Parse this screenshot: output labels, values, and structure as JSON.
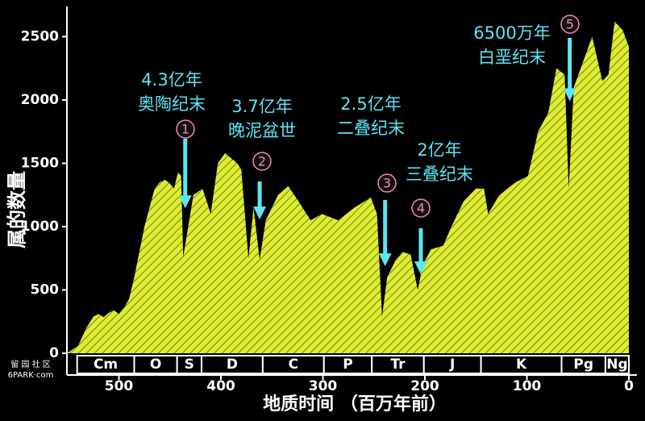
{
  "chart_data": {
    "type": "area",
    "y_label": "属的数量",
    "x_label": "地质时间 （百万年前）",
    "x": [
      551,
      540,
      532,
      525,
      520,
      515,
      510,
      505,
      500,
      495,
      490,
      485,
      480,
      475,
      470,
      465,
      460,
      455,
      450,
      446,
      442,
      439,
      437,
      427,
      418,
      410,
      403,
      396,
      384,
      380,
      373,
      368,
      362,
      356,
      344,
      334,
      324,
      312,
      301,
      285,
      269,
      253,
      247,
      242,
      237,
      229,
      222,
      214,
      207,
      202,
      194,
      182,
      174,
      162,
      150,
      142,
      138,
      127,
      111,
      99,
      89,
      79,
      71,
      63,
      59,
      54,
      36,
      26,
      20,
      14,
      6,
      0
    ],
    "values": [
      0,
      60,
      200,
      290,
      310,
      285,
      320,
      340,
      310,
      360,
      430,
      600,
      800,
      1000,
      1150,
      1300,
      1350,
      1370,
      1340,
      1300,
      1430,
      1400,
      760,
      1250,
      1300,
      1100,
      1500,
      1580,
      1500,
      1450,
      750,
      1150,
      740,
      1050,
      1250,
      1320,
      1200,
      1050,
      1100,
      1050,
      1150,
      1230,
      1100,
      290,
      600,
      730,
      800,
      780,
      500,
      700,
      820,
      850,
      1000,
      1200,
      1300,
      1300,
      1100,
      1250,
      1350,
      1400,
      1750,
      1900,
      2250,
      2200,
      1300,
      2100,
      2500,
      2150,
      2200,
      2620,
      2550,
      2420
    ],
    "color": "#e8e82e",
    "hatch_color": "#3b9b34",
    "xlim": [
      551,
      0
    ],
    "xticks": [
      500,
      400,
      300,
      200,
      100,
      0
    ],
    "ylim": [
      0,
      2700
    ],
    "yticks": [
      0,
      500,
      1000,
      1500,
      2000,
      2500
    ],
    "periods": [
      {
        "label": "Cm",
        "start": 541,
        "end": 485
      },
      {
        "label": "O",
        "start": 485,
        "end": 443
      },
      {
        "label": "S",
        "start": 443,
        "end": 419
      },
      {
        "label": "D",
        "start": 419,
        "end": 359
      },
      {
        "label": "C",
        "start": 359,
        "end": 299
      },
      {
        "label": "P",
        "start": 299,
        "end": 252
      },
      {
        "label": "Tr",
        "start": 252,
        "end": 201
      },
      {
        "label": "J",
        "start": 201,
        "end": 145
      },
      {
        "label": "K",
        "start": 145,
        "end": 66
      },
      {
        "label": "Pg",
        "start": 66,
        "end": 23
      },
      {
        "label": "Ng",
        "start": 23,
        "end": 0
      }
    ],
    "events": [
      {
        "number": "1",
        "lines": [
          "4.3亿年",
          "奥陶纪末"
        ],
        "x": 435,
        "y": 1145
      },
      {
        "number": "2",
        "lines": [
          "3.7亿年",
          "晚泥盆世"
        ],
        "x": 362,
        "y": 1056
      },
      {
        "number": "3",
        "lines": [
          "2.5亿年",
          "二叠纪末"
        ],
        "x": 239,
        "y": 687
      },
      {
        "number": "4",
        "lines": [
          "2亿年",
          "三叠纪末"
        ],
        "x": 204,
        "y": 623
      },
      {
        "number": "5",
        "lines": [
          "6500万年",
          "白垩纪末"
        ],
        "x": 58,
        "y": 1991
      }
    ],
    "watermark": [
      "留 园 社 区",
      "6PARK·com"
    ]
  }
}
